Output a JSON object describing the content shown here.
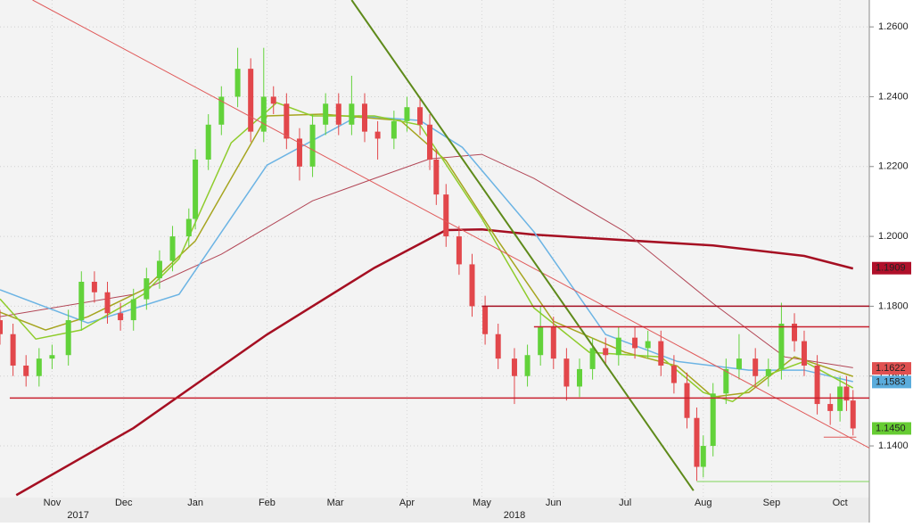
{
  "chart_data": {
    "type": "candlestick",
    "xlim": [
      0,
      267
    ],
    "ylim": [
      1.1252,
      1.2677
    ],
    "yticks": [
      {
        "value": 1.14,
        "label": "1.1400"
      },
      {
        "value": 1.16,
        "label": "1.1600"
      },
      {
        "value": 1.18,
        "label": "1.1800"
      },
      {
        "value": 1.2,
        "label": "1.2000"
      },
      {
        "value": 1.22,
        "label": "1.2200"
      },
      {
        "value": 1.24,
        "label": "1.2400"
      },
      {
        "value": 1.26,
        "label": "1.2600"
      }
    ],
    "xticks": [
      {
        "value": 16,
        "label": "Nov"
      },
      {
        "value": 38,
        "label": "Dec"
      },
      {
        "value": 60,
        "label": "Jan"
      },
      {
        "value": 82,
        "label": "Feb"
      },
      {
        "value": 103,
        "label": "Mar"
      },
      {
        "value": 125,
        "label": "Apr"
      },
      {
        "value": 148,
        "label": "May"
      },
      {
        "value": 170,
        "label": "Jun"
      },
      {
        "value": 192,
        "label": "Jul"
      },
      {
        "value": 216,
        "label": "Aug"
      },
      {
        "value": 237,
        "label": "Sep"
      },
      {
        "value": 258,
        "label": "Oct"
      }
    ],
    "year_labels": [
      {
        "value": 24,
        "label": "2017"
      },
      {
        "value": 158,
        "label": "2018"
      }
    ],
    "grid": true,
    "candles": {
      "up_color": "#62d23a",
      "down_color": "#e2474b",
      "x": [
        0,
        4,
        8,
        12,
        16,
        21,
        25,
        29,
        33,
        37,
        41,
        45,
        49,
        53,
        58,
        60,
        64,
        68,
        73,
        77,
        81,
        84,
        88,
        92,
        96,
        100,
        104,
        108,
        112,
        116,
        121,
        125,
        129,
        132,
        134,
        137,
        141,
        145,
        149,
        153,
        158,
        162,
        166,
        170,
        174,
        178,
        182,
        186,
        190,
        195,
        199,
        203,
        207,
        211,
        214,
        216,
        219,
        223,
        227,
        232,
        236,
        240,
        244,
        247,
        251,
        255,
        258,
        260,
        262
      ],
      "open": [
        1.176,
        1.172,
        1.163,
        1.16,
        1.165,
        1.166,
        1.176,
        1.187,
        1.184,
        1.178,
        1.176,
        1.182,
        1.188,
        1.193,
        1.2,
        1.205,
        1.222,
        1.232,
        1.24,
        1.248,
        1.23,
        1.24,
        1.238,
        1.228,
        1.22,
        1.232,
        1.238,
        1.232,
        1.238,
        1.23,
        1.228,
        1.233,
        1.237,
        1.232,
        1.222,
        1.212,
        1.2,
        1.192,
        1.18,
        1.172,
        1.165,
        1.16,
        1.166,
        1.174,
        1.165,
        1.157,
        1.162,
        1.168,
        1.166,
        1.171,
        1.168,
        1.17,
        1.163,
        1.158,
        1.148,
        1.134,
        1.14,
        1.155,
        1.162,
        1.165,
        1.16,
        1.162,
        1.175,
        1.17,
        1.163,
        1.152,
        1.15,
        1.157,
        1.153
      ],
      "high": [
        1.179,
        1.175,
        1.166,
        1.168,
        1.169,
        1.179,
        1.19,
        1.19,
        1.187,
        1.181,
        1.185,
        1.191,
        1.196,
        1.203,
        1.208,
        1.225,
        1.235,
        1.243,
        1.254,
        1.251,
        1.254,
        1.243,
        1.241,
        1.231,
        1.235,
        1.241,
        1.241,
        1.246,
        1.241,
        1.233,
        1.236,
        1.24,
        1.24,
        1.235,
        1.225,
        1.215,
        1.203,
        1.195,
        1.183,
        1.175,
        1.168,
        1.169,
        1.18,
        1.177,
        1.168,
        1.165,
        1.171,
        1.171,
        1.174,
        1.174,
        1.173,
        1.173,
        1.166,
        1.161,
        1.151,
        1.143,
        1.158,
        1.165,
        1.172,
        1.168,
        1.165,
        1.181,
        1.178,
        1.173,
        1.166,
        1.155,
        1.16,
        1.16,
        1.156
      ],
      "low": [
        1.169,
        1.16,
        1.157,
        1.157,
        1.162,
        1.163,
        1.173,
        1.181,
        1.175,
        1.173,
        1.173,
        1.179,
        1.185,
        1.19,
        1.197,
        1.202,
        1.219,
        1.229,
        1.237,
        1.227,
        1.227,
        1.235,
        1.225,
        1.216,
        1.217,
        1.229,
        1.229,
        1.229,
        1.227,
        1.222,
        1.225,
        1.23,
        1.229,
        1.219,
        1.209,
        1.197,
        1.189,
        1.177,
        1.169,
        1.162,
        1.152,
        1.157,
        1.163,
        1.162,
        1.153,
        1.154,
        1.159,
        1.163,
        1.163,
        1.165,
        1.165,
        1.16,
        1.155,
        1.145,
        1.13,
        1.131,
        1.137,
        1.152,
        1.159,
        1.157,
        1.157,
        1.159,
        1.167,
        1.16,
        1.149,
        1.146,
        1.147,
        1.15,
        1.143
      ],
      "close": [
        1.172,
        1.163,
        1.16,
        1.165,
        1.166,
        1.176,
        1.187,
        1.184,
        1.178,
        1.176,
        1.182,
        1.188,
        1.193,
        1.2,
        1.205,
        1.222,
        1.232,
        1.24,
        1.248,
        1.23,
        1.24,
        1.238,
        1.228,
        1.22,
        1.232,
        1.238,
        1.232,
        1.238,
        1.23,
        1.228,
        1.233,
        1.237,
        1.232,
        1.222,
        1.212,
        1.2,
        1.192,
        1.18,
        1.172,
        1.165,
        1.16,
        1.166,
        1.174,
        1.165,
        1.157,
        1.162,
        1.168,
        1.166,
        1.171,
        1.168,
        1.17,
        1.163,
        1.158,
        1.148,
        1.134,
        1.14,
        1.155,
        1.162,
        1.165,
        1.16,
        1.162,
        1.175,
        1.17,
        1.163,
        1.152,
        1.15,
        1.157,
        1.153,
        1.145
      ]
    },
    "series": [
      {
        "color": "#a50f22",
        "width": 2.5,
        "x": [
          5,
          41,
          82,
          115,
          137,
          148,
          164,
          219,
          247,
          262
        ],
        "values": [
          1.1259,
          1.1451,
          1.1719,
          1.191,
          1.2018,
          1.202,
          1.2005,
          1.1974,
          1.1944,
          1.1908
        ]
      },
      {
        "color": "#b24656",
        "width": 1,
        "x": [
          0,
          41,
          68,
          96,
          115,
          132,
          148,
          164,
          192,
          219,
          241,
          262
        ],
        "values": [
          1.177,
          1.1834,
          1.1949,
          1.2102,
          1.2166,
          1.2222,
          1.2235,
          1.2166,
          1.2013,
          1.1808,
          1.1655,
          1.1624
        ]
      },
      {
        "color": "#6cb4e4",
        "width": 1.5,
        "x": [
          0,
          27,
          55,
          82,
          110,
          129,
          142,
          164,
          186,
          208,
          230,
          247,
          262
        ],
        "values": [
          1.1847,
          1.1752,
          1.1834,
          1.2204,
          1.2345,
          1.2332,
          1.2255,
          1.2013,
          1.1719,
          1.1642,
          1.1617,
          1.1617,
          1.1584
        ]
      },
      {
        "color": "#a6a520",
        "width": 1.5,
        "x": [
          0,
          14,
          27,
          44,
          60,
          82,
          99,
          123,
          137,
          153,
          170,
          192,
          208,
          219,
          230,
          244,
          262
        ],
        "values": [
          1.1783,
          1.1732,
          1.177,
          1.1847,
          1.1987,
          1.2345,
          1.235,
          1.2332,
          1.2217,
          1.1987,
          1.1757,
          1.1668,
          1.1629,
          1.154,
          1.1553,
          1.1655,
          1.1599
        ]
      },
      {
        "color": "#8fcc2c",
        "width": 1.5,
        "x": [
          0,
          11,
          25,
          44,
          55,
          71,
          85,
          96,
          115,
          129,
          148,
          164,
          181,
          203,
          216,
          225,
          236,
          247,
          262
        ],
        "values": [
          1.1821,
          1.1706,
          1.1732,
          1.1834,
          1.1936,
          1.2268,
          1.2383,
          1.2345,
          1.2345,
          1.2319,
          1.2051,
          1.1795,
          1.1668,
          1.1655,
          1.1553,
          1.1527,
          1.1604,
          1.1642,
          1.1566
        ]
      }
    ],
    "trend_lines": [
      {
        "color": "#e05a5a",
        "width": 1,
        "x": [
          10,
          267
        ],
        "values": [
          1.2677,
          1.1394
        ]
      },
      {
        "color": "#5e8a1a",
        "width": 2,
        "x": [
          108,
          213
        ],
        "values": [
          1.2677,
          1.1272
        ]
      },
      {
        "color": "#c8202e",
        "width": 1.5,
        "x": [
          3,
          267
        ],
        "values": [
          1.1537,
          1.1537
        ]
      },
      {
        "color": "#a50f22",
        "width": 1.5,
        "x": [
          148,
          267
        ],
        "values": [
          1.18,
          1.18
        ]
      },
      {
        "color": "#c8202e",
        "width": 1.5,
        "x": [
          164,
          267
        ],
        "values": [
          1.1741,
          1.1741
        ]
      },
      {
        "color": "#7fd65a",
        "width": 1,
        "x": [
          214,
          267
        ],
        "values": [
          1.1298,
          1.1298
        ]
      },
      {
        "color": "#e05a5a",
        "width": 1,
        "x": [
          253,
          263
        ],
        "values": [
          1.1425,
          1.1425
        ]
      }
    ],
    "value_tags": [
      {
        "value": 1.1909,
        "label": "1.1909",
        "color": "#b0102a",
        "text_color": "#ffffff"
      },
      {
        "value": 1.1622,
        "label": "1.1622",
        "color": "#e05050",
        "text_color": "#ffffff"
      },
      {
        "value": 1.1583,
        "label": "1.1583",
        "color": "#5aacdc",
        "text_color": "#000000"
      },
      {
        "value": 1.145,
        "label": "1.1450",
        "color": "#66cc33",
        "text_color": "#000000"
      }
    ]
  }
}
